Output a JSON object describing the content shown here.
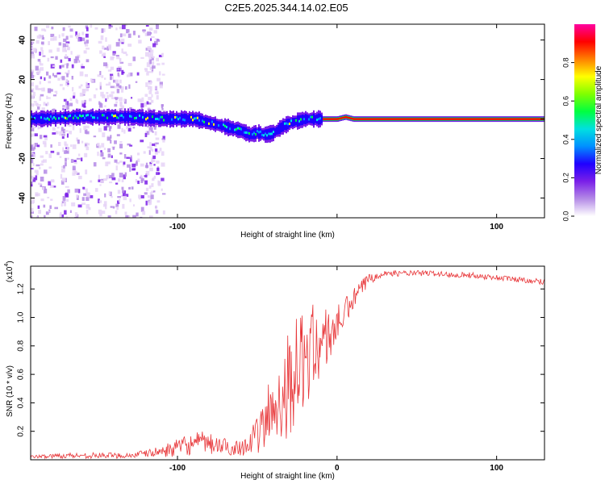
{
  "figure_title": "C2E5.2025.344.14.02.E05",
  "colors": {
    "snr_line": "#e8383b",
    "axis": "#000000",
    "background": "#ffffff"
  },
  "colormap": [
    "#ffffff",
    "#e6d4f7",
    "#b48ae6",
    "#7a1fe8",
    "#1f00ff",
    "#0090ff",
    "#00e0e0",
    "#00ff40",
    "#80ff00",
    "#ffff00",
    "#ff8000",
    "#ff0000",
    "#ff00a0"
  ],
  "chart_data": [
    {
      "type": "heatmap",
      "title": "C2E5.2025.344.14.02.E05",
      "xlabel": "Height of straight line (km)",
      "ylabel": "Frequency (Hz)",
      "xlim": [
        -192,
        130
      ],
      "ylim": [
        -50,
        48
      ],
      "xticks": [
        -100,
        0,
        100
      ],
      "xtick_labels": [
        "-100",
        "",
        "100"
      ],
      "yticks": [
        -40,
        -20,
        0,
        20,
        40
      ],
      "ytick_labels": [
        "-40",
        "-20",
        "0",
        "20",
        "40"
      ],
      "grid": false,
      "description_values": {
        "noise_region_x": [
          -192,
          -110
        ],
        "signal_ridge": {
          "x": [
            -190,
            -160,
            -130,
            -110,
            -90,
            -80,
            -70,
            -60,
            -55,
            -50,
            -45,
            -40,
            -35,
            -30,
            -25,
            -20,
            -15,
            -10,
            -5,
            0,
            5,
            10,
            20,
            40,
            60,
            80,
            100,
            130
          ],
          "freq": [
            0,
            1,
            1,
            0,
            0,
            -2,
            -4,
            -6,
            -8,
            -7,
            -8,
            -7,
            -4,
            -2,
            -1,
            0,
            0,
            0,
            0,
            0,
            1,
            0,
            0,
            0,
            0,
            0,
            0,
            0
          ]
        },
        "peak_amplitude_region_x": [
          -10,
          130
        ]
      },
      "colorbar": {
        "label": "Normalized spectral amplitude",
        "range": [
          0,
          1
        ],
        "ticks": [
          0.0,
          0.2,
          0.4,
          0.6,
          0.8
        ],
        "tick_labels": [
          "0.0",
          "0.2",
          "0.4",
          "0.6",
          "0.8"
        ]
      }
    },
    {
      "type": "line",
      "xlabel": "Height of straight line (km)",
      "ylabel": "SNR (10 * v/v)",
      "scale_label": "(x10",
      "scale_exponent": "4",
      "xlim": [
        -192,
        130
      ],
      "ylim": [
        0,
        1.36
      ],
      "xticks": [
        -100,
        0,
        100
      ],
      "xtick_labels": [
        "-100",
        "0",
        "100"
      ],
      "yticks": [
        0.2,
        0.4,
        0.6,
        0.8,
        1.0,
        1.2
      ],
      "ytick_labels": [
        "0.2",
        "0.4",
        "0.6",
        "0.8",
        "1.0",
        "1.2"
      ],
      "grid": false,
      "series": [
        {
          "name": "SNR",
          "x": [
            -192,
            -170,
            -150,
            -130,
            -115,
            -105,
            -95,
            -85,
            -75,
            -65,
            -55,
            -48,
            -42,
            -38,
            -34,
            -30,
            -26,
            -22,
            -18,
            -14,
            -10,
            -6,
            -2,
            2,
            6,
            10,
            15,
            20,
            25,
            30,
            40,
            50,
            60,
            70,
            80,
            90,
            100,
            110,
            120,
            130
          ],
          "values": [
            0.02,
            0.03,
            0.03,
            0.03,
            0.05,
            0.07,
            0.1,
            0.12,
            0.1,
            0.08,
            0.11,
            0.2,
            0.32,
            0.4,
            0.48,
            0.55,
            0.62,
            0.68,
            0.75,
            0.8,
            0.82,
            0.86,
            0.92,
            0.98,
            1.05,
            1.12,
            1.2,
            1.27,
            1.3,
            1.31,
            1.31,
            1.31,
            1.31,
            1.3,
            1.3,
            1.29,
            1.28,
            1.27,
            1.26,
            1.25
          ],
          "noise_amplitude": [
            0.01,
            0.02,
            0.02,
            0.02,
            0.03,
            0.05,
            0.07,
            0.08,
            0.07,
            0.05,
            0.08,
            0.15,
            0.28,
            0.32,
            0.36,
            0.38,
            0.38,
            0.36,
            0.34,
            0.3,
            0.26,
            0.22,
            0.16,
            0.12,
            0.1,
            0.08,
            0.06,
            0.05,
            0.03,
            0.02,
            0.02,
            0.02,
            0.02,
            0.02,
            0.02,
            0.02,
            0.02,
            0.02,
            0.02,
            0.02
          ]
        }
      ]
    }
  ]
}
